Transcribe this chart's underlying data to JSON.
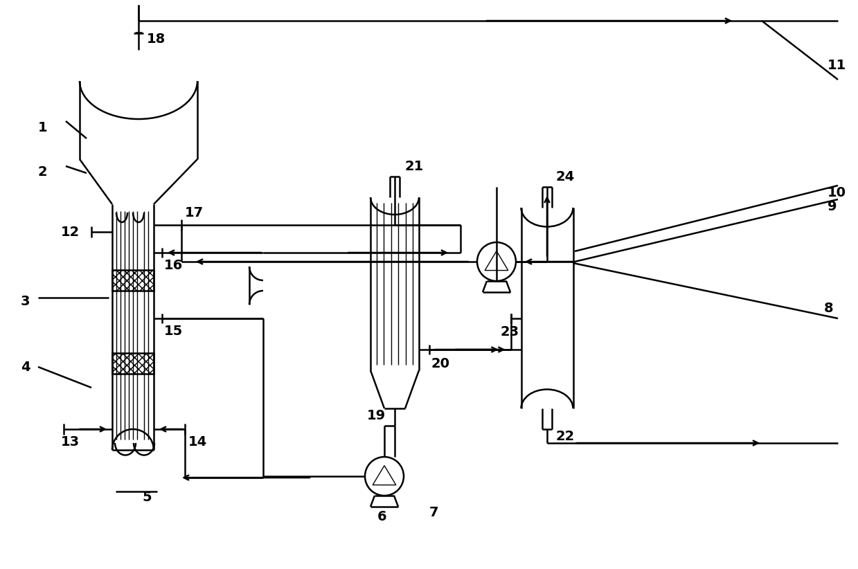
{
  "bg_color": "#ffffff",
  "line_color": "#000000",
  "lw": 1.8,
  "lw_thin": 1.0,
  "fs": 14,
  "fw": "bold",
  "fig_w": 12.39,
  "fig_h": 8.22
}
